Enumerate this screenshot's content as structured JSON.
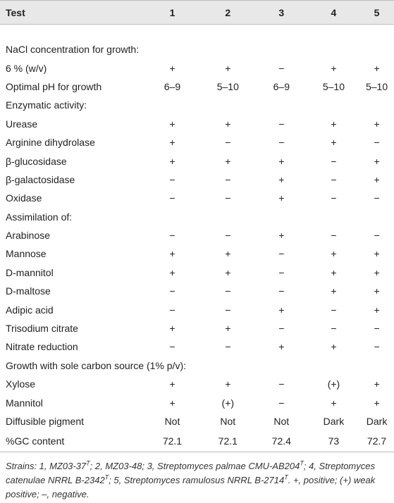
{
  "table": {
    "header": [
      "Test",
      "1",
      "2",
      "3",
      "4",
      "5"
    ],
    "rows": [
      {
        "label": "NaCl concentration for growth:"
      },
      {
        "label": "6 % (w/v)",
        "values": [
          "+",
          "+",
          "−",
          "+",
          "+"
        ]
      },
      {
        "label": "Optimal pH for growth",
        "values": [
          "6–9",
          "5–10",
          "6–9",
          "5–10",
          "5–10"
        ]
      },
      {
        "label": "Enzymatic activity:"
      },
      {
        "label": "Urease",
        "values": [
          "+",
          "+",
          "−",
          "+",
          "+"
        ]
      },
      {
        "label": "Arginine dihydrolase",
        "values": [
          "+",
          "−",
          "−",
          "+",
          "−"
        ]
      },
      {
        "label": "β-glucosidase",
        "values": [
          "+",
          "+",
          "+",
          "−",
          "+"
        ]
      },
      {
        "label": "β-galactosidase",
        "values": [
          "−",
          "−",
          "+",
          "−",
          "+"
        ]
      },
      {
        "label": "Oxidase",
        "values": [
          "−",
          "−",
          "+",
          "−",
          "−"
        ]
      },
      {
        "label": "Assimilation of:"
      },
      {
        "label": "Arabinose",
        "values": [
          "−",
          "−",
          "+",
          "−",
          "−"
        ]
      },
      {
        "label": "Mannose",
        "values": [
          "+",
          "+",
          "−",
          "+",
          "+"
        ]
      },
      {
        "label": "D-mannitol",
        "values": [
          "+",
          "+",
          "−",
          "+",
          "+"
        ]
      },
      {
        "label": "D-maltose",
        "values": [
          "−",
          "−",
          "−",
          "+",
          "+"
        ]
      },
      {
        "label": "Adipic acid",
        "values": [
          "−",
          "−",
          "+",
          "−",
          "+"
        ]
      },
      {
        "label": "Trisodium citrate",
        "values": [
          "+",
          "+",
          "−",
          "−",
          "−"
        ]
      },
      {
        "label": "Nitrate reduction",
        "values": [
          "−",
          "−",
          "+",
          "+",
          "−"
        ]
      },
      {
        "label": "Growth with sole carbon source (1% p/v):"
      },
      {
        "label": "Xylose",
        "values": [
          "+",
          "+",
          "−",
          "(+)",
          "+"
        ]
      },
      {
        "label": "Mannitol",
        "values": [
          "+",
          "(+)",
          "−",
          "+",
          "+"
        ]
      },
      {
        "label": "Diffusible pigment",
        "values": [
          "Not",
          "Not",
          "Not",
          "Dark",
          "Dark"
        ]
      },
      {
        "label": "%GC content",
        "values": [
          72.1,
          72.1,
          72.4,
          73,
          72.7
        ]
      }
    ]
  },
  "footnote": [
    {
      "text": "Strains: 1, MZ03-37"
    },
    {
      "superscript": "T"
    },
    {
      "text": "; 2, MZ03-48; 3, Streptomyces palmae CMU-AB204"
    },
    {
      "superscript": "T"
    },
    {
      "text": "; 4, Streptomyces catenulae NRRL B-2342"
    },
    {
      "superscript": "T"
    },
    {
      "text": "; 5, Streptomyces ramulosus NRRL B-2714"
    },
    {
      "superscript": "T"
    },
    {
      "text": ". +, positive; (+) weak positive; –, negative."
    }
  ]
}
